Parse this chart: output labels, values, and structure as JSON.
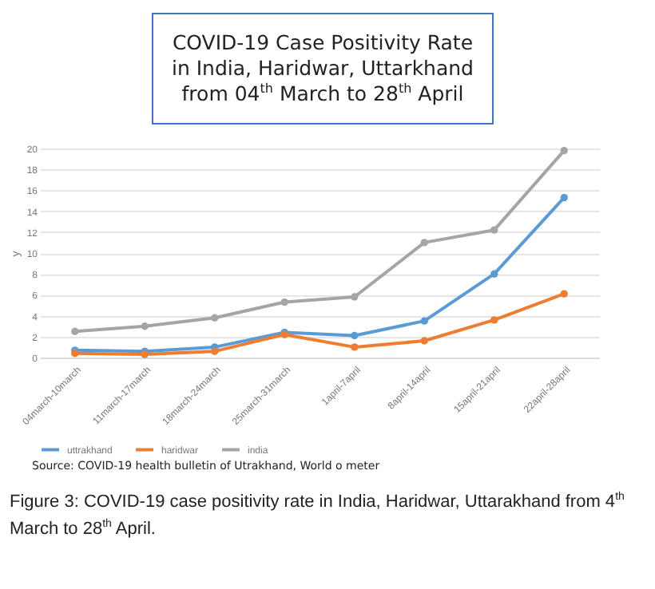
{
  "chart_data": {
    "type": "line",
    "title": "COVID-19 Case Positivity Rate in India, Haridwar, Uttarkhand from 04$^{th}$ March to 28$^{th}$ April",
    "ylabel": "y",
    "categories": [
      "04march-10march",
      "11march-17march",
      "18march-24march",
      "25march-31march",
      "1april-7april",
      "8april-14april",
      "15april-21april",
      "22april-28april"
    ],
    "series": [
      {
        "name": "uttrakhand",
        "color": "#5b9bd5",
        "values": [
          0.7,
          0.6,
          1.0,
          2.4,
          2.1,
          3.5,
          8.0,
          15.3
        ]
      },
      {
        "name": "haridwar",
        "color": "#ed7d31",
        "values": [
          0.4,
          0.3,
          0.6,
          2.2,
          1.0,
          1.6,
          3.6,
          6.1
        ]
      },
      {
        "name": "india",
        "color": "#a5a5a5",
        "values": [
          2.5,
          3.0,
          3.8,
          5.3,
          5.8,
          11.0,
          12.2,
          19.8
        ]
      }
    ],
    "ylim": [
      0,
      20
    ],
    "yticks": [
      0,
      2,
      4,
      6,
      8,
      10,
      12,
      14,
      16,
      18,
      20
    ],
    "grid": "y",
    "legend": "bottom",
    "marker": "circle",
    "line_style": "solid",
    "annotations": [
      "Source: COVID-19 health bulletin of Utrakhand, World o meter",
      "Figure 3: COVID-19 case positivity rate in India, Haridwar, Uttarakhand from 4$^{th}$ March to 28$^{th}$ April."
    ]
  }
}
